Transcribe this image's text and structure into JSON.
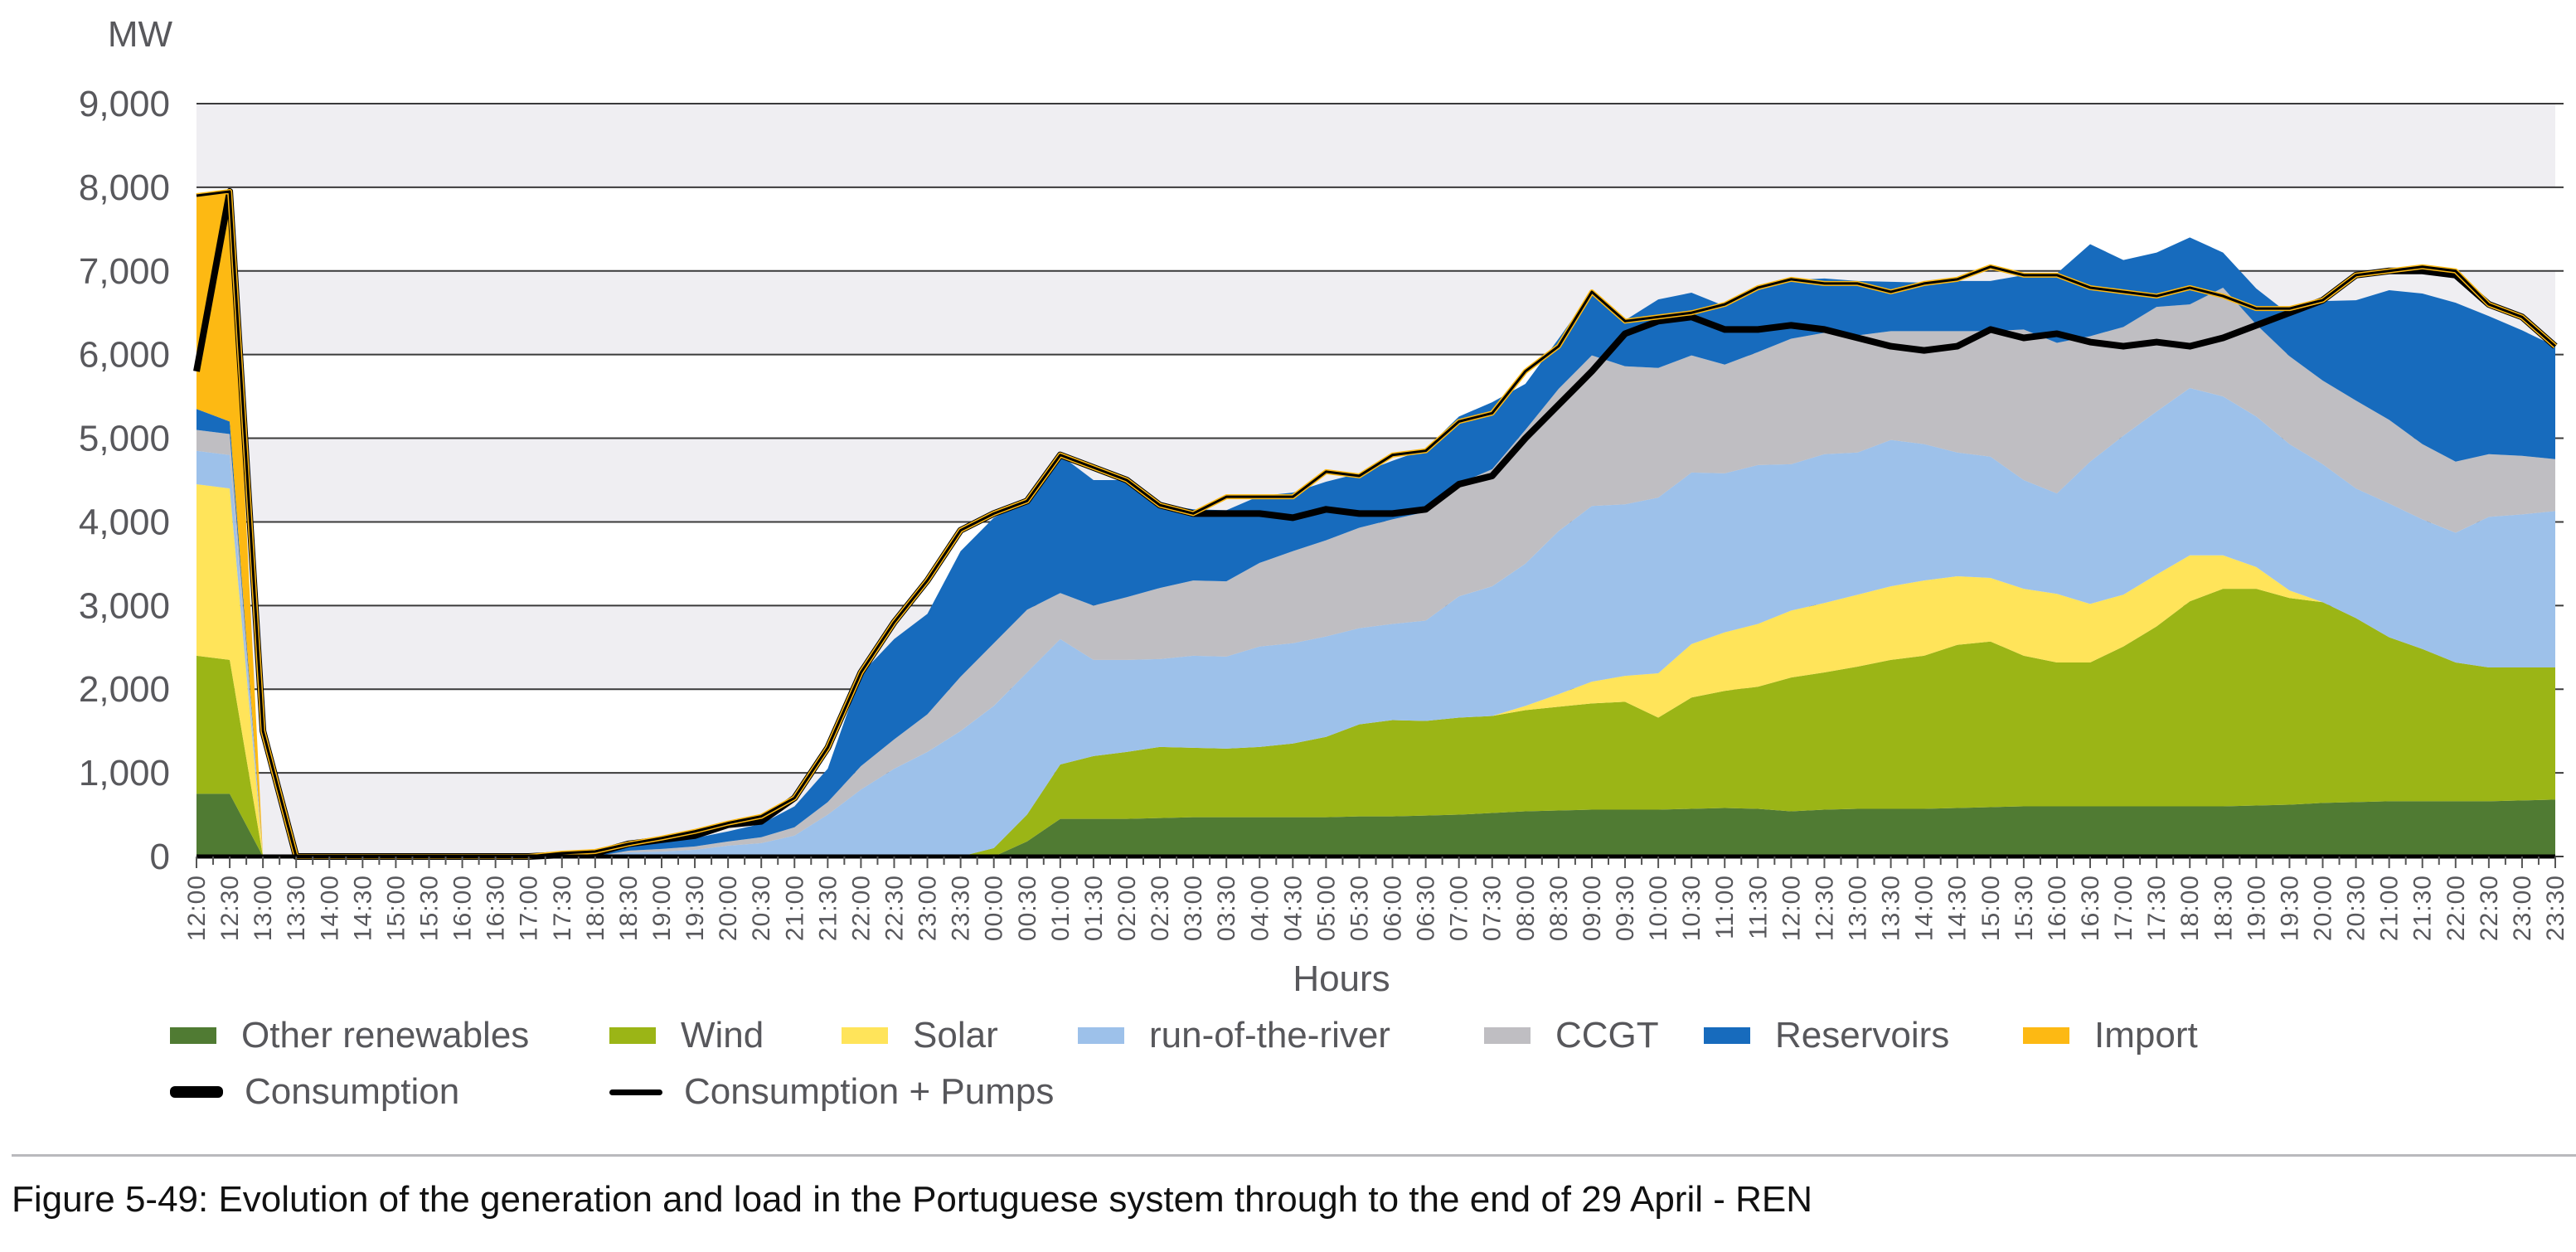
{
  "chart_data": {
    "type": "area",
    "stacked": true,
    "title": "",
    "ylabel": "MW",
    "xlabel": "Hours",
    "ylim": [
      0,
      9000
    ],
    "yticks": [
      0,
      1000,
      2000,
      3000,
      4000,
      5000,
      6000,
      7000,
      8000,
      9000
    ],
    "ytick_labels": [
      "0",
      "1,000",
      "2,000",
      "3,000",
      "4,000",
      "5,000",
      "6,000",
      "7,000",
      "8,000",
      "9,000"
    ],
    "grid": "horizontal, alternating shaded bands",
    "legend_position": "bottom",
    "x": [
      "12:00",
      "12:30",
      "13:00",
      "13:30",
      "14:00",
      "14:30",
      "15:00",
      "15:30",
      "16:00",
      "16:30",
      "17:00",
      "17:30",
      "18:00",
      "18:30",
      "19:00",
      "19:30",
      "20:00",
      "20:30",
      "21:00",
      "21:30",
      "22:00",
      "22:30",
      "23:00",
      "23:30",
      "00:00",
      "00:30",
      "01:00",
      "01:30",
      "02:00",
      "02:30",
      "03:00",
      "03:30",
      "04:00",
      "04:30",
      "05:00",
      "05:30",
      "06:00",
      "06:30",
      "07:00",
      "07:30",
      "08:00",
      "08:30",
      "09:00",
      "09:30",
      "10:00",
      "10:30",
      "11:00",
      "11:30",
      "12:00",
      "12:30",
      "13:00",
      "13:30",
      "14:00",
      "14:30",
      "15:00",
      "15:30",
      "16:00",
      "16:30",
      "17:00",
      "17:30",
      "18:00",
      "18:30",
      "19:00",
      "19:30",
      "20:00",
      "20:30",
      "21:00",
      "21:30",
      "22:00",
      "22:30",
      "23:00",
      "23:30"
    ],
    "series": [
      {
        "name": "Other renewables",
        "color": "#507b33",
        "kind": "area",
        "values": [
          750,
          750,
          0,
          0,
          0,
          0,
          0,
          0,
          0,
          0,
          0,
          0,
          0,
          0,
          0,
          0,
          0,
          0,
          0,
          0,
          0,
          0,
          0,
          0,
          0,
          180,
          450,
          450,
          450,
          460,
          470,
          470,
          470,
          470,
          470,
          480,
          480,
          490,
          500,
          520,
          540,
          550,
          560,
          560,
          560,
          570,
          580,
          570,
          540,
          560,
          570,
          570,
          570,
          580,
          590,
          600,
          600,
          600,
          600,
          600,
          600,
          600,
          610,
          620,
          640,
          650,
          660,
          660,
          660,
          660,
          670,
          680
        ]
      },
      {
        "name": "Wind",
        "color": "#9bb516",
        "kind": "area",
        "values": [
          1650,
          1600,
          0,
          0,
          0,
          0,
          0,
          0,
          0,
          0,
          0,
          0,
          0,
          0,
          0,
          0,
          0,
          0,
          0,
          0,
          0,
          0,
          0,
          0,
          100,
          320,
          650,
          750,
          800,
          850,
          830,
          820,
          840,
          880,
          960,
          1100,
          1150,
          1130,
          1160,
          1160,
          1210,
          1240,
          1270,
          1290,
          1100,
          1330,
          1400,
          1460,
          1600,
          1640,
          1700,
          1780,
          1830,
          1950,
          1980,
          1800,
          1720,
          1720,
          1910,
          2150,
          2450,
          2600,
          2590,
          2470,
          2400,
          2200,
          1960,
          1820,
          1660,
          1600,
          1590,
          1580
        ]
      },
      {
        "name": "Solar",
        "color": "#ffe45a",
        "kind": "area",
        "values": [
          2050,
          2050,
          0,
          0,
          0,
          0,
          0,
          0,
          0,
          0,
          0,
          0,
          0,
          0,
          0,
          0,
          0,
          0,
          0,
          0,
          0,
          0,
          0,
          0,
          0,
          0,
          0,
          0,
          0,
          0,
          0,
          0,
          0,
          0,
          0,
          0,
          0,
          0,
          0,
          0,
          50,
          150,
          260,
          310,
          530,
          640,
          700,
          750,
          800,
          830,
          860,
          880,
          900,
          820,
          760,
          800,
          820,
          700,
          620,
          620,
          550,
          400,
          260,
          90,
          0,
          0,
          0,
          0,
          0,
          0,
          0,
          0
        ]
      },
      {
        "name": "run-of-the-river",
        "color": "#9dc1ea",
        "kind": "area",
        "values": [
          400,
          400,
          0,
          0,
          0,
          0,
          0,
          0,
          0,
          0,
          0,
          0,
          0,
          50,
          60,
          80,
          130,
          160,
          250,
          500,
          800,
          1050,
          1250,
          1500,
          1700,
          1700,
          1500,
          1150,
          1100,
          1050,
          1100,
          1100,
          1200,
          1200,
          1200,
          1150,
          1150,
          1200,
          1450,
          1550,
          1700,
          1950,
          2100,
          2050,
          2100,
          2050,
          1900,
          1900,
          1750,
          1780,
          1700,
          1750,
          1630,
          1480,
          1450,
          1300,
          1200,
          1700,
          1900,
          1950,
          2000,
          1900,
          1800,
          1750,
          1650,
          1550,
          1600,
          1550,
          1550,
          1800,
          1830,
          1870
        ]
      },
      {
        "name": "CCGT",
        "color": "#bfbec2",
        "kind": "area",
        "values": [
          250,
          250,
          0,
          0,
          0,
          0,
          0,
          0,
          0,
          0,
          0,
          0,
          0,
          20,
          30,
          40,
          50,
          70,
          100,
          150,
          280,
          350,
          450,
          650,
          750,
          750,
          550,
          650,
          750,
          850,
          900,
          900,
          1000,
          1100,
          1150,
          1200,
          1250,
          1300,
          1350,
          1400,
          1600,
          1700,
          1800,
          1650,
          1550,
          1400,
          1300,
          1350,
          1500,
          1450,
          1400,
          1300,
          1350,
          1450,
          1500,
          1800,
          1800,
          1500,
          1300,
          1250,
          1000,
          1300,
          1100,
          1050,
          1000,
          1050,
          1000,
          900,
          850,
          750,
          700,
          620
        ]
      },
      {
        "name": "Reservoirs",
        "color": "#176bbd",
        "kind": "area",
        "values": [
          250,
          150,
          0,
          0,
          0,
          0,
          0,
          0,
          0,
          0,
          0,
          20,
          40,
          50,
          80,
          100,
          120,
          160,
          250,
          400,
          1100,
          1200,
          1200,
          1500,
          1500,
          1300,
          1650,
          1500,
          1400,
          1000,
          850,
          850,
          800,
          700,
          700,
          650,
          700,
          750,
          800,
          800,
          550,
          600,
          760,
          550,
          820,
          750,
          700,
          750,
          700,
          650,
          650,
          590,
          580,
          600,
          600,
          650,
          830,
          1100,
          800,
          650,
          800,
          420,
          430,
          500,
          950,
          1200,
          1550,
          1800,
          1900,
          1650,
          1500,
          1350
        ]
      },
      {
        "name": "Import",
        "color": "#fdb913",
        "kind": "area",
        "values": [
          2550,
          2750,
          0,
          0,
          0,
          0,
          0,
          0,
          0,
          0,
          0,
          0,
          0,
          0,
          0,
          0,
          0,
          0,
          0,
          0,
          0,
          0,
          0,
          0,
          0,
          0,
          0,
          0,
          0,
          0,
          0,
          0,
          0,
          0,
          0,
          0,
          0,
          0,
          0,
          0,
          0,
          0,
          0,
          0,
          0,
          0,
          0,
          0,
          0,
          0,
          0,
          0,
          0,
          0,
          0,
          0,
          0,
          0,
          0,
          0,
          0,
          0,
          0,
          0,
          0,
          0,
          0,
          0,
          0,
          0,
          0,
          0
        ]
      },
      {
        "name": "Consumption",
        "color": "#000000",
        "kind": "line",
        "width": "thick",
        "values": [
          5800,
          7950,
          1500,
          0,
          0,
          0,
          0,
          0,
          0,
          0,
          0,
          20,
          40,
          150,
          200,
          250,
          380,
          420,
          700,
          1300,
          2200,
          2800,
          3300,
          3900,
          4100,
          4250,
          4800,
          4650,
          4500,
          4200,
          4100,
          4100,
          4100,
          4050,
          4150,
          4100,
          4100,
          4150,
          4450,
          4550,
          5000,
          5400,
          5800,
          6250,
          6400,
          6450,
          6300,
          6300,
          6350,
          6300,
          6200,
          6100,
          6050,
          6100,
          6300,
          6200,
          6250,
          6150,
          6100,
          6150,
          6100,
          6200,
          6350,
          6500,
          6650,
          6950,
          7000,
          7000,
          6950,
          6600,
          6450,
          6100
        ]
      },
      {
        "name": "Consumption + Pumps",
        "color": "#000000",
        "kind": "line",
        "width": "thin",
        "values": [
          7900,
          7950,
          1500,
          0,
          0,
          0,
          0,
          0,
          0,
          0,
          0,
          40,
          60,
          150,
          220,
          300,
          400,
          480,
          700,
          1300,
          2200,
          2800,
          3300,
          3900,
          4100,
          4250,
          4800,
          4650,
          4500,
          4200,
          4100,
          4300,
          4300,
          4300,
          4600,
          4550,
          4800,
          4850,
          5200,
          5300,
          5800,
          6100,
          6750,
          6400,
          6450,
          6500,
          6600,
          6800,
          6900,
          6850,
          6850,
          6750,
          6850,
          6900,
          7050,
          6950,
          6950,
          6800,
          6750,
          6700,
          6800,
          6700,
          6550,
          6550,
          6650,
          6950,
          7000,
          7050,
          7000,
          6600,
          6450,
          6100
        ]
      }
    ]
  },
  "legend": {
    "items": [
      {
        "label": "Other renewables",
        "color": "#507b33"
      },
      {
        "label": "Wind",
        "color": "#9bb516"
      },
      {
        "label": "Solar",
        "color": "#ffe45a"
      },
      {
        "label": "run-of-the-river",
        "color": "#9dc1ea"
      },
      {
        "label": "CCGT",
        "color": "#bfbec2"
      },
      {
        "label": "Reservoirs",
        "color": "#176bbd"
      },
      {
        "label": "Import",
        "color": "#fdb913"
      }
    ],
    "lines": [
      {
        "label": "Consumption"
      },
      {
        "label": "Consumption + Pumps"
      }
    ]
  },
  "caption": "Figure 5-49: Evolution of the generation and load in the Portuguese system through to the end of 29 April - REN"
}
